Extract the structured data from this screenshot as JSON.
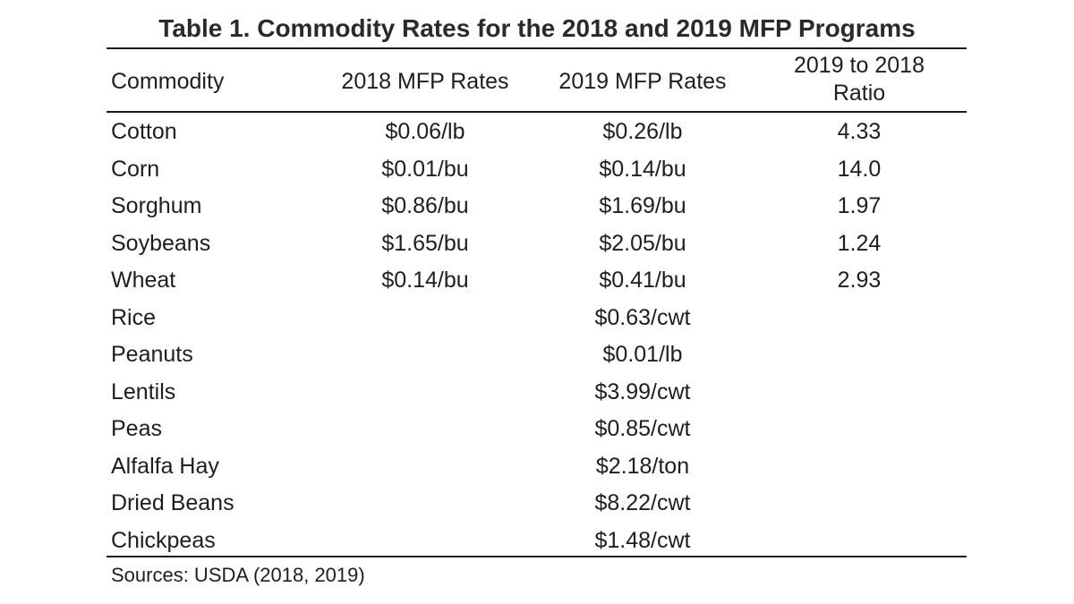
{
  "title": "Table 1. Commodity Rates for the 2018 and 2019 MFP Programs",
  "headers": {
    "commodity": "Commodity",
    "rate_2018": "2018 MFP Rates",
    "rate_2019": "2019 MFP Rates",
    "ratio_line1": "2019 to 2018",
    "ratio_line2": "Ratio"
  },
  "rows": [
    {
      "commodity": "Cotton",
      "rate_2018": "$0.06/lb",
      "rate_2019": "$0.26/lb",
      "ratio": "4.33"
    },
    {
      "commodity": "Corn",
      "rate_2018": "$0.01/bu",
      "rate_2019": "$0.14/bu",
      "ratio": "14.0"
    },
    {
      "commodity": "Sorghum",
      "rate_2018": "$0.86/bu",
      "rate_2019": "$1.69/bu",
      "ratio": "1.97"
    },
    {
      "commodity": "Soybeans",
      "rate_2018": "$1.65/bu",
      "rate_2019": "$2.05/bu",
      "ratio": "1.24"
    },
    {
      "commodity": "Wheat",
      "rate_2018": "$0.14/bu",
      "rate_2019": "$0.41/bu",
      "ratio": "2.93"
    },
    {
      "commodity": "Rice",
      "rate_2018": "",
      "rate_2019": "$0.63/cwt",
      "ratio": ""
    },
    {
      "commodity": "Peanuts",
      "rate_2018": "",
      "rate_2019": "$0.01/lb",
      "ratio": ""
    },
    {
      "commodity": "Lentils",
      "rate_2018": "",
      "rate_2019": "$3.99/cwt",
      "ratio": ""
    },
    {
      "commodity": "Peas",
      "rate_2018": "",
      "rate_2019": "$0.85/cwt",
      "ratio": ""
    },
    {
      "commodity": "Alfalfa Hay",
      "rate_2018": "",
      "rate_2019": "$2.18/ton",
      "ratio": ""
    },
    {
      "commodity": "Dried Beans",
      "rate_2018": "",
      "rate_2019": "$8.22/cwt",
      "ratio": ""
    },
    {
      "commodity": "Chickpeas",
      "rate_2018": "",
      "rate_2019": "$1.48/cwt",
      "ratio": ""
    }
  ],
  "source": "Sources: USDA (2018, 2019)"
}
